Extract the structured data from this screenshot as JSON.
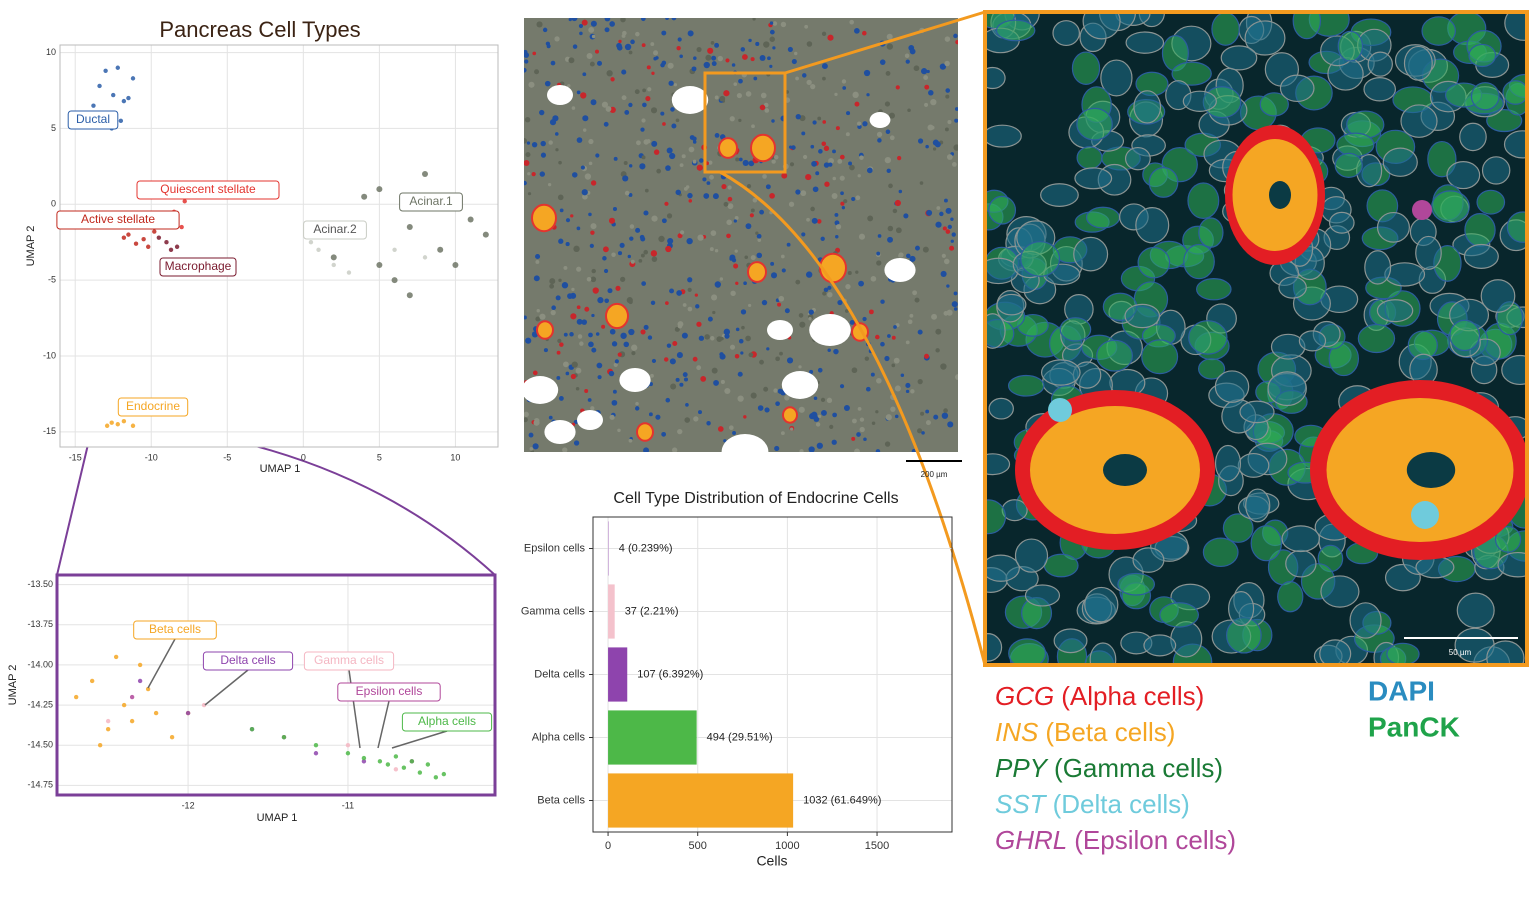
{
  "chart_data": [
    {
      "type": "scatter",
      "title": "Pancreas Cell Types",
      "x_label": "UMAP 1",
      "y_label": "UMAP 2",
      "xlim": [
        -16,
        12.8
      ],
      "ylim": [
        -16,
        10.5
      ],
      "xticks": [
        -15,
        -10,
        -5,
        0,
        5,
        10
      ],
      "yticks": [
        10,
        5,
        0,
        -5,
        -10,
        -15
      ],
      "grid": true,
      "series": [
        {
          "name": "Ductal",
          "color": "#2b5ea8",
          "x": [
            -12.5,
            -13.8,
            -11.2,
            -12.0,
            -13.0,
            -11.8,
            -12.6,
            -13.4,
            -11.5,
            -12.2
          ],
          "values": [
            7.2,
            6.5,
            8.3,
            5.5,
            8.8,
            6.8,
            5.0,
            7.8,
            7.0,
            9.0
          ]
        },
        {
          "name": "Quiescent   stellate",
          "color": "#e3342f",
          "x": [
            -8.5,
            -7.8,
            -9.2,
            -8.0,
            -7.5
          ],
          "values": [
            -0.5,
            0.2,
            -1.0,
            -1.5,
            0.8
          ]
        },
        {
          "name": "Active   stellate",
          "color": "#c0281d",
          "x": [
            -11.5,
            -10.5,
            -11.0,
            -9.8,
            -10.2,
            -11.8
          ],
          "values": [
            -2.0,
            -2.3,
            -2.6,
            -1.8,
            -2.8,
            -2.2
          ]
        },
        {
          "name": "Macrophage",
          "color": "#7a1a2e",
          "x": [
            -9.0,
            -8.3,
            -8.7,
            -9.5
          ],
          "values": [
            -2.5,
            -2.8,
            -3.0,
            -2.2
          ]
        },
        {
          "name": "Acinar.1",
          "color": "#6e7566",
          "x": [
            7,
            5,
            9,
            3,
            11,
            6,
            8,
            4,
            10,
            2,
            12,
            7,
            5,
            9
          ],
          "values": [
            -1.5,
            1,
            -3,
            -2,
            -1,
            -5,
            2,
            0.5,
            -4,
            -3.5,
            -2,
            -6,
            -4,
            0
          ],
          "size": 3
        },
        {
          "name": "Acinar.2",
          "color": "#c9ccc4",
          "x": [
            1,
            2,
            0.5,
            3,
            6,
            8
          ],
          "values": [
            -3,
            -4,
            -2.5,
            -4.5,
            -3,
            -3.5
          ]
        },
        {
          "name": "Endocrine",
          "color": "#f5a623",
          "x": [
            -12.6,
            -12.2,
            -11.8,
            -12.9,
            -11.2
          ],
          "values": [
            -14.4,
            -14.5,
            -14.3,
            -14.6,
            -14.6
          ]
        }
      ]
    },
    {
      "type": "scatter",
      "x_label": "UMAP 1",
      "y_label": "UMAP 2",
      "xlim": [
        -12.82,
        -10.08
      ],
      "ylim": [
        -14.81,
        -13.44
      ],
      "xticks": [
        -12,
        -11
      ],
      "yticks": [
        {
          "value": -13.5,
          "label": "-13.50"
        },
        {
          "value": -13.75,
          "label": "-13.75"
        },
        {
          "value": -14.0,
          "label": "-14.00"
        },
        {
          "value": -14.25,
          "label": "-14.25"
        },
        {
          "value": -14.5,
          "label": "-14.50"
        },
        {
          "value": -14.75,
          "label": "-14.75"
        }
      ],
      "grid": true,
      "series": [
        {
          "name": "Beta  cells",
          "color": "#f5a623",
          "x": [
            -12.4,
            -12.6,
            -12.2,
            -12.5,
            -12.3,
            -12.7,
            -12.1,
            -12.45,
            -12.35,
            -12.55,
            -12.25,
            -12.0
          ],
          "values": [
            -14.25,
            -14.1,
            -14.3,
            -14.4,
            -14.0,
            -14.2,
            -14.45,
            -13.95,
            -14.35,
            -14.5,
            -14.15,
            -14.3
          ]
        },
        {
          "name": "Delta  cells",
          "color": "#8e44ad",
          "x": [
            -12.3,
            -12.0,
            -11.6,
            -11.2,
            -10.9
          ],
          "values": [
            -14.1,
            -14.3,
            -14.4,
            -14.55,
            -14.6
          ]
        },
        {
          "name": "Gamma  cells",
          "color": "#f4b6c2",
          "x": [
            -12.5,
            -11.9,
            -11.0,
            -10.7
          ],
          "values": [
            -14.35,
            -14.25,
            -14.5,
            -14.65
          ]
        },
        {
          "name": "Epsilon  cells",
          "color": "#b0479a",
          "x": [
            -12.35,
            -11.4,
            -10.6
          ],
          "values": [
            -14.2,
            -14.45,
            -14.6
          ]
        },
        {
          "name": "Alpha  cells",
          "color": "#4db848",
          "x": [
            -11.6,
            -11.4,
            -11.2,
            -11.0,
            -10.9,
            -10.8,
            -10.75,
            -10.7,
            -10.65,
            -10.6,
            -10.55,
            -10.5,
            -10.45,
            -10.4
          ],
          "values": [
            -14.4,
            -14.45,
            -14.5,
            -14.55,
            -14.58,
            -14.6,
            -14.62,
            -14.57,
            -14.64,
            -14.6,
            -14.67,
            -14.62,
            -14.7,
            -14.68
          ]
        }
      ]
    },
    {
      "type": "barh",
      "title": "Cell Type Distribution of Endocrine Cells",
      "x_label": "Cells",
      "categories": [
        "Beta cells",
        "Alpha cells",
        "Delta cells",
        "Gamma cells",
        "Epsilon cells"
      ],
      "values": [
        1032,
        494,
        107,
        37,
        4
      ],
      "value_labels": [
        "1032 (61.649%)",
        "494 (29.51%)",
        "107 (6.392%)",
        "37 (2.21%)",
        "4 (0.239%)"
      ],
      "colors": [
        "#f5a623",
        "#4db848",
        "#8e44ad",
        "#f4c2cc",
        "#c39bd3"
      ],
      "xlim": [
        -84,
        1918
      ],
      "xticks": [
        0,
        500,
        1000,
        1500
      ],
      "grid": true
    }
  ],
  "images": {
    "tissue_scale": "200 µm",
    "micro_scale": "50 µm"
  },
  "markers": [
    {
      "gene": "GCG",
      "cells": "(Alpha cells)",
      "color": "#e31e24"
    },
    {
      "gene": "INS",
      "cells": "(Beta cells)",
      "color": "#f5a623"
    },
    {
      "gene": "PPY",
      "cells": "(Gamma cells)",
      "color": "#1a7a35"
    },
    {
      "gene": "SST",
      "cells": "(Delta cells)",
      "color": "#6fcbdc"
    },
    {
      "gene": "GHRL",
      "cells": "(Epsilon cells)",
      "color": "#b0479a"
    }
  ],
  "stains": [
    {
      "name": "DAPI",
      "color": "#2a8cc0"
    },
    {
      "name": "PanCK",
      "color": "#1fa34a"
    }
  ]
}
